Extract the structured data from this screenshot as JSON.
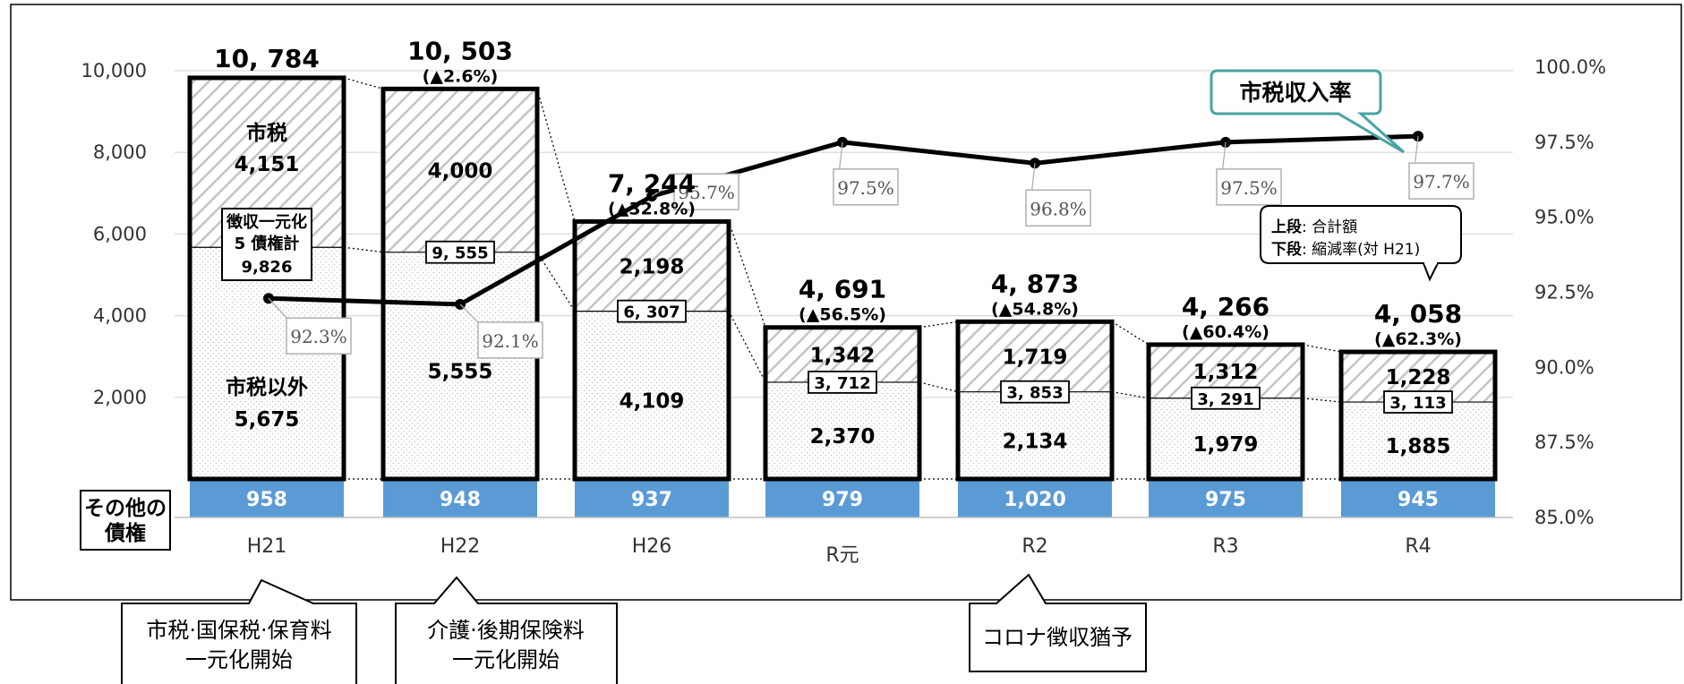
{
  "chart_data": {
    "type": "bar",
    "categories": [
      "H21",
      "H22",
      "H26",
      "R元",
      "R2",
      "R3",
      "R4"
    ],
    "series": [
      {
        "name": "その他の債権",
        "values": [
          958,
          948,
          937,
          979,
          1020,
          975,
          945
        ]
      },
      {
        "name": "市税以外",
        "values": [
          5675,
          5555,
          4109,
          2370,
          2134,
          1979,
          1885
        ]
      },
      {
        "name": "市税",
        "values": [
          4151,
          4000,
          2198,
          1342,
          1719,
          1312,
          1228
        ]
      },
      {
        "name": "市税収入率",
        "values": [
          92.3,
          92.1,
          95.7,
          97.5,
          96.8,
          97.5,
          97.7
        ]
      }
    ],
    "five_total_labels": [
      "9,826",
      "9, 555",
      "6, 307",
      "3, 712",
      "3, 853",
      "3, 291",
      "3, 113"
    ],
    "totals": [
      "10, 784",
      "10, 503",
      "7, 244",
      "4, 691",
      "4, 873",
      "4, 266",
      "4, 058"
    ],
    "change_rates": [
      "",
      "(▲2.6%)",
      "(▲32.8%)",
      "(▲56.5%)",
      "(▲54.8%)",
      "(▲60.4%)",
      "(▲62.3%)"
    ],
    "seg_labels": {
      "shizei": [
        "4,151",
        "4,000",
        "2,198",
        "1,342",
        "1,719",
        "1,312",
        "1,228"
      ],
      "igai": [
        "5,675",
        "5,555",
        "4,109",
        "2,370",
        "2,134",
        "1,979",
        "1,885"
      ],
      "sonota": [
        "958",
        "948",
        "937",
        "979",
        "1,020",
        "975",
        "945"
      ]
    },
    "rate_labels": [
      "92.3%",
      "92.1%",
      "95.7%",
      "97.5%",
      "96.8%",
      "97.5%",
      "97.7%"
    ],
    "y_left": {
      "min": 0,
      "max": 10000,
      "ticks": [
        "2,000",
        "4,000",
        "6,000",
        "8,000",
        "10,000"
      ]
    },
    "y_right": {
      "min": 85,
      "max": 100,
      "ticks": [
        "85.0%",
        "87.5%",
        "90.0%",
        "92.5%",
        "95.0%",
        "97.5%",
        "100.0%"
      ]
    },
    "colors": {
      "sonota": "#5b9bd5",
      "line": "#000000",
      "callout_border": "#4aa3a3"
    }
  },
  "labels": {
    "shizei_name": "市税",
    "igai_name": "市税以外",
    "sonota_line1": "その他の",
    "sonota_line2": "債権",
    "five_line1": "徴収一元化",
    "five_line2": "5 債権計",
    "line_title": "市税収入率",
    "note_top_bold": "上段",
    "note_top_rest": ": 合計額",
    "note_bot_bold": "下段",
    "note_bot_rest": ": 縮減率(対 H21)"
  },
  "events": [
    {
      "line1": "市税·国保税·保育料",
      "line2": "一元化開始"
    },
    {
      "line1": "介護·後期保険料",
      "line2": "一元化開始"
    },
    {
      "line1": "コロナ徴収猶予",
      "line2": ""
    }
  ]
}
